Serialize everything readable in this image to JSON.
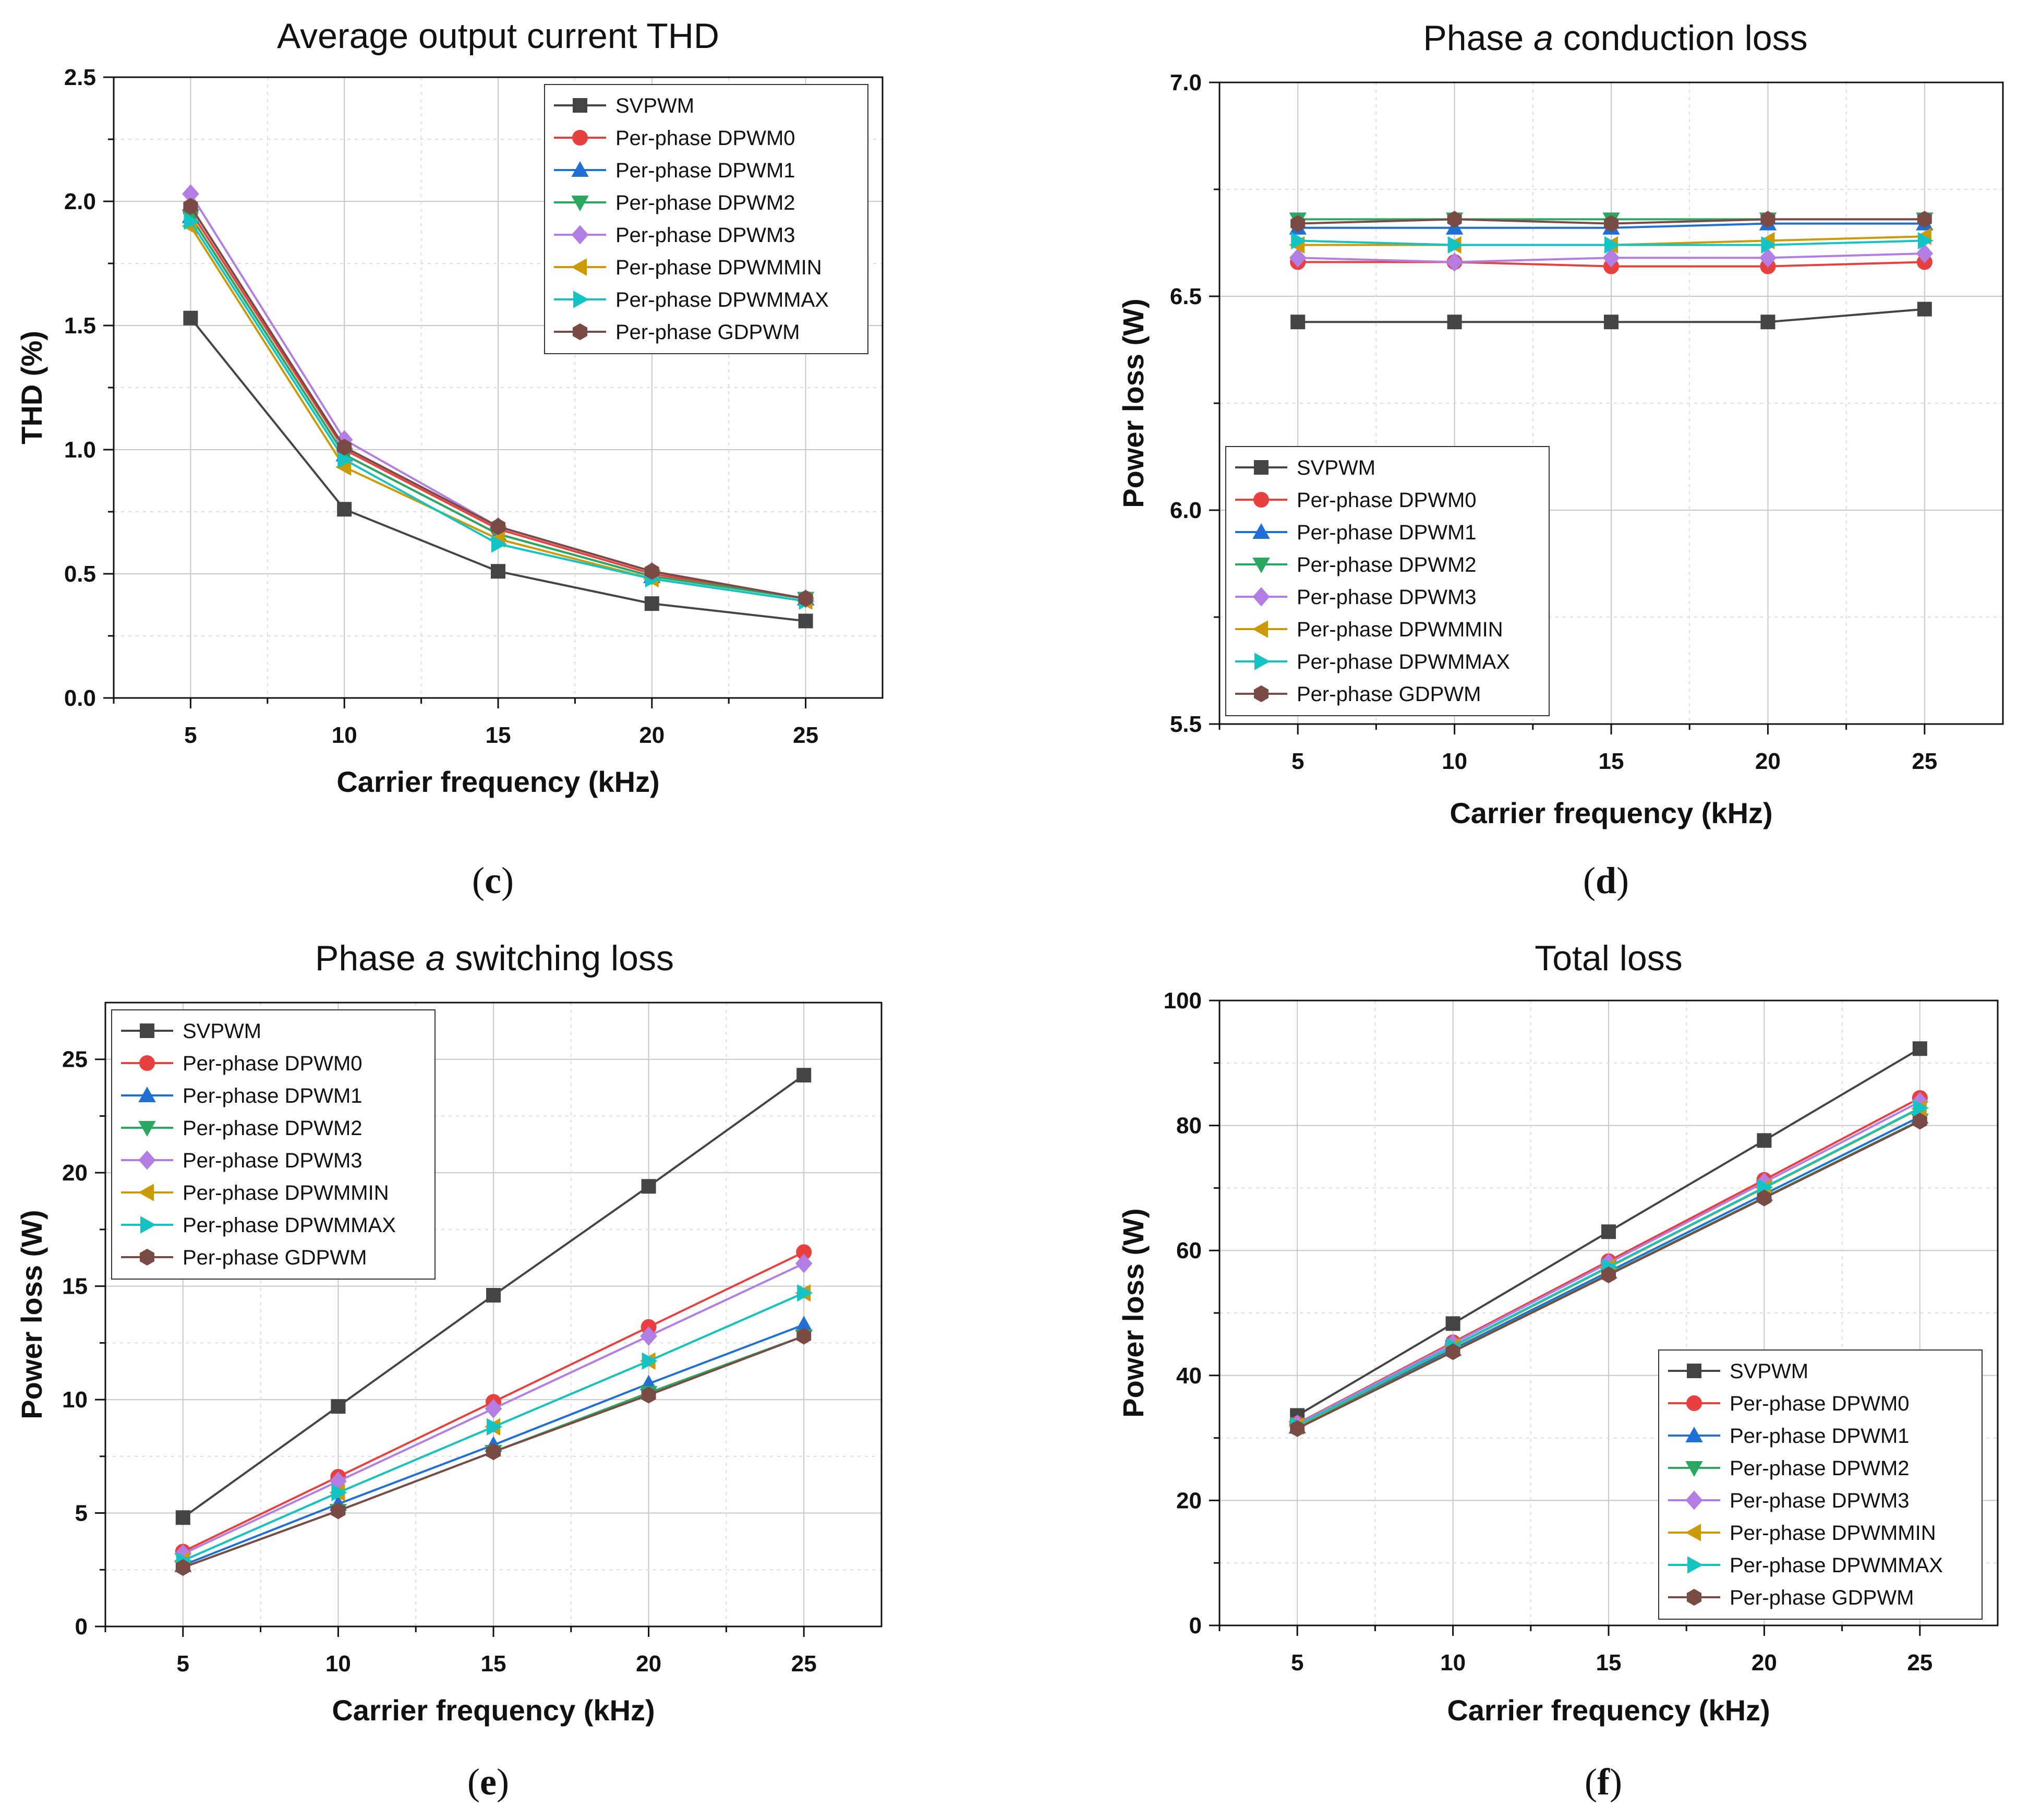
{
  "series_styles": [
    {
      "name": "SVPWM",
      "color": "#444444",
      "marker": "square"
    },
    {
      "name": "Per-phase DPWM0",
      "color": "#e8403f",
      "marker": "circle"
    },
    {
      "name": "Per-phase DPWM1",
      "color": "#1f6fd6",
      "marker": "triangle-up"
    },
    {
      "name": "Per-phase DPWM2",
      "color": "#2aa860",
      "marker": "triangle-down"
    },
    {
      "name": "Per-phase DPWM3",
      "color": "#b27ee3",
      "marker": "diamond"
    },
    {
      "name": "Per-phase DPWMMIN",
      "color": "#cc9a06",
      "marker": "triangle-left"
    },
    {
      "name": "Per-phase DPWMMAX",
      "color": "#14c4c4",
      "marker": "triangle-right"
    },
    {
      "name": "Per-phase GDPWM",
      "color": "#7a4a44",
      "marker": "hexagon"
    }
  ],
  "chart_data": [
    {
      "id": "c",
      "panel_label": "(c)",
      "type": "line",
      "title": "Average output current THD",
      "title_italic": "",
      "title_suffix": "",
      "xlabel": "Carrier frequency (kHz)",
      "ylabel": "THD (%)",
      "x": [
        5,
        10,
        15,
        20,
        25
      ],
      "xlim": [
        2.5,
        27.5
      ],
      "ylim": [
        0,
        2.5
      ],
      "yticks": [
        0.0,
        0.5,
        1.0,
        1.5,
        2.0,
        2.5
      ],
      "ytick_labels": [
        "0.0",
        "0.5",
        "1.0",
        "1.5",
        "2.0",
        "2.5"
      ],
      "legend_position": "top-right",
      "series": [
        {
          "name": "SVPWM",
          "values": [
            1.53,
            0.76,
            0.51,
            0.38,
            0.31
          ]
        },
        {
          "name": "Per-phase DPWM0",
          "values": [
            1.96,
            1.0,
            0.68,
            0.5,
            0.4
          ]
        },
        {
          "name": "Per-phase DPWM1",
          "values": [
            1.94,
            0.98,
            0.66,
            0.49,
            0.4
          ]
        },
        {
          "name": "Per-phase DPWM2",
          "values": [
            1.94,
            0.98,
            0.66,
            0.49,
            0.4
          ]
        },
        {
          "name": "Per-phase DPWM3",
          "values": [
            2.03,
            1.04,
            0.69,
            0.51,
            0.4
          ]
        },
        {
          "name": "Per-phase DPWMMIN",
          "values": [
            1.9,
            0.93,
            0.64,
            0.48,
            0.39
          ]
        },
        {
          "name": "Per-phase DPWMMAX",
          "values": [
            1.92,
            0.96,
            0.62,
            0.48,
            0.39
          ]
        },
        {
          "name": "Per-phase GDPWM",
          "values": [
            1.98,
            1.01,
            0.69,
            0.51,
            0.4
          ]
        }
      ]
    },
    {
      "id": "d",
      "panel_label": "(d)",
      "type": "line",
      "title": "Phase ",
      "title_italic": "a",
      "title_suffix": " conduction loss",
      "xlabel": "Carrier frequency (kHz)",
      "ylabel": "Power loss (W)",
      "x": [
        5,
        10,
        15,
        20,
        25
      ],
      "xlim": [
        2.5,
        27.5
      ],
      "ylim": [
        5.5,
        7.0
      ],
      "yticks": [
        5.5,
        6.0,
        6.5,
        7.0
      ],
      "ytick_labels": [
        "5.5",
        "6.0",
        "6.5",
        "7.0"
      ],
      "legend_position": "bottom-left",
      "series": [
        {
          "name": "SVPWM",
          "values": [
            6.44,
            6.44,
            6.44,
            6.44,
            6.47
          ]
        },
        {
          "name": "Per-phase DPWM0",
          "values": [
            6.58,
            6.58,
            6.57,
            6.57,
            6.58
          ]
        },
        {
          "name": "Per-phase DPWM1",
          "values": [
            6.66,
            6.66,
            6.66,
            6.67,
            6.67
          ]
        },
        {
          "name": "Per-phase DPWM2",
          "values": [
            6.68,
            6.68,
            6.68,
            6.68,
            6.68
          ]
        },
        {
          "name": "Per-phase DPWM3",
          "values": [
            6.59,
            6.58,
            6.59,
            6.59,
            6.6
          ]
        },
        {
          "name": "Per-phase DPWMMIN",
          "values": [
            6.62,
            6.62,
            6.62,
            6.63,
            6.64
          ]
        },
        {
          "name": "Per-phase DPWMMAX",
          "values": [
            6.63,
            6.62,
            6.62,
            6.62,
            6.63
          ]
        },
        {
          "name": "Per-phase GDPWM",
          "values": [
            6.67,
            6.68,
            6.67,
            6.68,
            6.68
          ]
        }
      ]
    },
    {
      "id": "e",
      "panel_label": "(e)",
      "type": "line",
      "title": "Phase ",
      "title_italic": "a",
      "title_suffix": " switching loss",
      "xlabel": "Carrier frequency (kHz)",
      "ylabel": "Power loss (W)",
      "x": [
        5,
        10,
        15,
        20,
        25
      ],
      "xlim": [
        2.5,
        27.5
      ],
      "ylim": [
        0,
        27.5
      ],
      "yticks": [
        0,
        5,
        10,
        15,
        20,
        25
      ],
      "ytick_labels": [
        "0",
        "5",
        "10",
        "15",
        "20",
        "25"
      ],
      "legend_position": "top-left",
      "series": [
        {
          "name": "SVPWM",
          "values": [
            4.8,
            9.7,
            14.6,
            19.4,
            24.3
          ]
        },
        {
          "name": "Per-phase DPWM0",
          "values": [
            3.3,
            6.6,
            9.9,
            13.2,
            16.5
          ]
        },
        {
          "name": "Per-phase DPWM1",
          "values": [
            2.7,
            5.4,
            8.0,
            10.7,
            13.3
          ]
        },
        {
          "name": "Per-phase DPWM2",
          "values": [
            2.6,
            5.1,
            7.7,
            10.3,
            12.8
          ]
        },
        {
          "name": "Per-phase DPWM3",
          "values": [
            3.2,
            6.4,
            9.6,
            12.8,
            16.0
          ]
        },
        {
          "name": "Per-phase DPWMMIN",
          "values": [
            2.9,
            5.9,
            8.8,
            11.7,
            14.7
          ]
        },
        {
          "name": "Per-phase DPWMMAX",
          "values": [
            2.9,
            5.9,
            8.8,
            11.7,
            14.7
          ]
        },
        {
          "name": "Per-phase GDPWM",
          "values": [
            2.6,
            5.1,
            7.7,
            10.2,
            12.8
          ]
        }
      ]
    },
    {
      "id": "f",
      "panel_label": "(f)",
      "type": "line",
      "title": "Total loss",
      "title_italic": "",
      "title_suffix": "",
      "xlabel": "Carrier frequency (kHz)",
      "ylabel": "Power loss (W)",
      "x": [
        5,
        10,
        15,
        20,
        25
      ],
      "xlim": [
        2.5,
        27.5
      ],
      "ylim": [
        0,
        100
      ],
      "yticks": [
        0,
        20,
        40,
        60,
        80,
        100
      ],
      "ytick_labels": [
        "0",
        "20",
        "40",
        "60",
        "80",
        "100"
      ],
      "legend_position": "bottom-right",
      "series": [
        {
          "name": "SVPWM",
          "values": [
            33.6,
            48.3,
            63.0,
            77.6,
            92.3
          ]
        },
        {
          "name": "Per-phase DPWM0",
          "values": [
            32.3,
            45.3,
            58.3,
            71.3,
            84.4
          ]
        },
        {
          "name": "Per-phase DPWM1",
          "values": [
            31.8,
            44.2,
            56.6,
            69.0,
            81.4
          ]
        },
        {
          "name": "Per-phase DPWM2",
          "values": [
            31.6,
            43.9,
            56.2,
            68.5,
            80.8
          ]
        },
        {
          "name": "Per-phase DPWM3",
          "values": [
            32.2,
            45.1,
            58.0,
            70.9,
            83.8
          ]
        },
        {
          "name": "Per-phase DPWMMIN",
          "values": [
            31.9,
            44.6,
            57.3,
            70.0,
            82.7
          ]
        },
        {
          "name": "Per-phase DPWMMAX",
          "values": [
            32.0,
            44.7,
            57.4,
            70.1,
            82.8
          ]
        },
        {
          "name": "Per-phase GDPWM",
          "values": [
            31.5,
            43.8,
            56.1,
            68.4,
            80.7
          ]
        }
      ]
    }
  ]
}
